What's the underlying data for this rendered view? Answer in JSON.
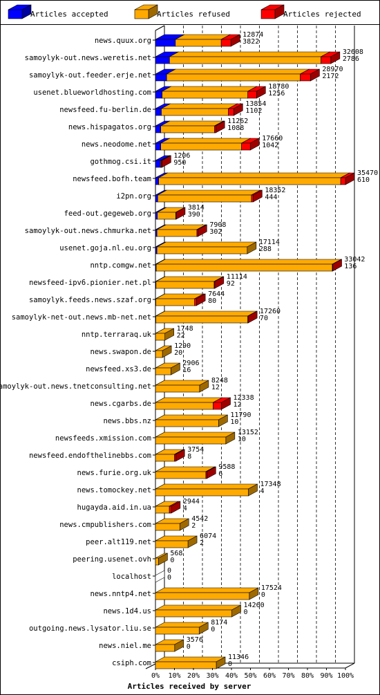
{
  "chart_data": {
    "type": "bar",
    "orientation": "horizontal",
    "stacked": true,
    "title": "",
    "xlabel": "Articles received by server",
    "ylabel": "",
    "xlim": [
      0,
      100
    ],
    "x_unit": "%",
    "x_ticks": [
      "0%",
      "10%",
      "20%",
      "30%",
      "40%",
      "50%",
      "60%",
      "70%",
      "80%",
      "90%",
      "100%"
    ],
    "grid": true,
    "legend_position": "top",
    "colors": {
      "accepted": "#0000ff",
      "refused": "#ffaa00",
      "rejected": "#ff0000"
    },
    "series": [
      {
        "name": "Articles accepted",
        "key": "accepted"
      },
      {
        "name": "Articles refused",
        "key": "refused"
      },
      {
        "name": "Articles rejected",
        "key": "rejected"
      }
    ],
    "rows": [
      {
        "server": "news.quux.org",
        "total": "12874",
        "accepted_value": "3822",
        "pct": [
          10.5,
          24.1,
          5.1
        ]
      },
      {
        "server": "samoylyk-out.news.weretis.net",
        "total": "32608",
        "accepted_value": "2786",
        "pct": [
          7.4,
          79.7,
          5.2
        ]
      },
      {
        "server": "samoylyk-out.feeder.erje.net",
        "total": "28970",
        "accepted_value": "2172",
        "pct": [
          5.9,
          70.3,
          5.4
        ]
      },
      {
        "server": "usenet.blueworldhosting.com",
        "total": "18780",
        "accepted_value": "1256",
        "pct": [
          3.5,
          45.1,
          4.6
        ]
      },
      {
        "server": "newsfeed.fu-berlin.de",
        "total": "13854",
        "accepted_value": "1102",
        "pct": [
          3.1,
          35.3,
          2.8
        ]
      },
      {
        "server": "news.hispagatos.org",
        "total": "11262",
        "accepted_value": "1088",
        "pct": [
          2.8,
          28.3,
          0.6
        ]
      },
      {
        "server": "news.neodome.net",
        "total": "17660",
        "accepted_value": "1042",
        "pct": [
          2.8,
          42.5,
          4.6
        ]
      },
      {
        "server": "gothmog.csi.it",
        "total": "1206",
        "accepted_value": "950",
        "pct": [
          2.7,
          0.3,
          0.4
        ]
      },
      {
        "server": "newsfeed.bofh.team",
        "total": "35470",
        "accepted_value": "610",
        "pct": [
          1.7,
          95.8,
          2.5
        ]
      },
      {
        "server": "i2pn.org",
        "total": "18352",
        "accepted_value": "444",
        "pct": [
          1.2,
          49.3,
          0.9
        ]
      },
      {
        "server": "feed-out.gegeweb.org",
        "total": "3814",
        "accepted_value": "390",
        "pct": [
          1.0,
          9.7,
          0.1
        ]
      },
      {
        "server": "samoylyk-out.news.chmurka.net",
        "total": "7908",
        "accepted_value": "302",
        "pct": [
          0.8,
          21.0,
          0.5
        ]
      },
      {
        "server": "usenet.goja.nl.eu.org",
        "total": "17114",
        "accepted_value": "288",
        "pct": [
          0.8,
          47.5,
          0.0
        ]
      },
      {
        "server": "nntp.comgw.net",
        "total": "33042",
        "accepted_value": "136",
        "pct": [
          0.4,
          92.7,
          0.1
        ]
      },
      {
        "server": "newsfeed-ipv6.pionier.net.pl",
        "total": "11114",
        "accepted_value": "92",
        "pct": [
          0.3,
          30.6,
          0.3
        ]
      },
      {
        "server": "samoylyk.feeds.news.szaf.org",
        "total": "7644",
        "accepted_value": "80",
        "pct": [
          0.2,
          20.4,
          0.9
        ]
      },
      {
        "server": "samoylyk-net-out.news.mb-net.net",
        "total": "17260",
        "accepted_value": "70",
        "pct": [
          0.2,
          48.4,
          0.1
        ]
      },
      {
        "server": "nntp.terraraq.uk",
        "total": "1748",
        "accepted_value": "22",
        "pct": [
          0.06,
          4.9,
          0.0
        ]
      },
      {
        "server": "news.swapon.de",
        "total": "1290",
        "accepted_value": "20",
        "pct": [
          0.06,
          3.6,
          0.0
        ]
      },
      {
        "server": "newsfeed.xs3.de",
        "total": "2906",
        "accepted_value": "16",
        "pct": [
          0.05,
          8.1,
          0.0
        ]
      },
      {
        "server": "samoylyk-out.news.tnetconsulting.net",
        "total": "8248",
        "accepted_value": "12",
        "pct": [
          0.03,
          23.2,
          0.0
        ]
      },
      {
        "server": "news.cgarbs.de",
        "total": "12338",
        "accepted_value": "12",
        "pct": [
          0.03,
          30.3,
          4.4
        ]
      },
      {
        "server": "news.bbs.nz",
        "total": "11790",
        "accepted_value": "10",
        "pct": [
          0.03,
          33.2,
          0.0
        ]
      },
      {
        "server": "newsfeeds.xmission.com",
        "total": "13152",
        "accepted_value": "10",
        "pct": [
          0.03,
          37.0,
          0.0
        ]
      },
      {
        "server": "newsfeed.endofthelinebbs.com",
        "total": "3754",
        "accepted_value": "8",
        "pct": [
          0.02,
          10.0,
          0.6
        ]
      },
      {
        "server": "news.furie.org.uk",
        "total": "9588",
        "accepted_value": "6",
        "pct": [
          0.02,
          26.5,
          0.5
        ]
      },
      {
        "server": "news.tomockey.net",
        "total": "17348",
        "accepted_value": "4",
        "pct": [
          0.01,
          48.9,
          0.0
        ]
      },
      {
        "server": "hugayda.aid.in.ua",
        "total": "2944",
        "accepted_value": "4",
        "pct": [
          0.01,
          7.3,
          1.0
        ]
      },
      {
        "server": "news.cmpublishers.com",
        "total": "4542",
        "accepted_value": "2",
        "pct": [
          0.01,
          12.8,
          0.0
        ]
      },
      {
        "server": "peer.alt119.net",
        "total": "6074",
        "accepted_value": "2",
        "pct": [
          0.01,
          17.1,
          0.0
        ]
      },
      {
        "server": "peering.usenet.ovh",
        "total": "568",
        "accepted_value": "0",
        "pct": [
          0.0,
          1.6,
          0.0
        ]
      },
      {
        "server": "localhost",
        "total": "0",
        "accepted_value": "0",
        "pct": [
          0.0,
          0.0,
          0.0
        ]
      },
      {
        "server": "news.nntp4.net",
        "total": "17524",
        "accepted_value": "0",
        "pct": [
          0.0,
          49.4,
          0.0
        ]
      },
      {
        "server": "news.1d4.us",
        "total": "14260",
        "accepted_value": "0",
        "pct": [
          0.0,
          40.2,
          0.0
        ]
      },
      {
        "server": "outgoing.news.lysator.liu.se",
        "total": "8174",
        "accepted_value": "0",
        "pct": [
          0.0,
          23.0,
          0.0
        ]
      },
      {
        "server": "news.niel.me",
        "total": "3576",
        "accepted_value": "0",
        "pct": [
          0.0,
          10.1,
          0.0
        ]
      },
      {
        "server": "csiph.com",
        "total": "11346",
        "accepted_value": "0",
        "pct": [
          0.0,
          32.0,
          0.0
        ]
      }
    ]
  }
}
